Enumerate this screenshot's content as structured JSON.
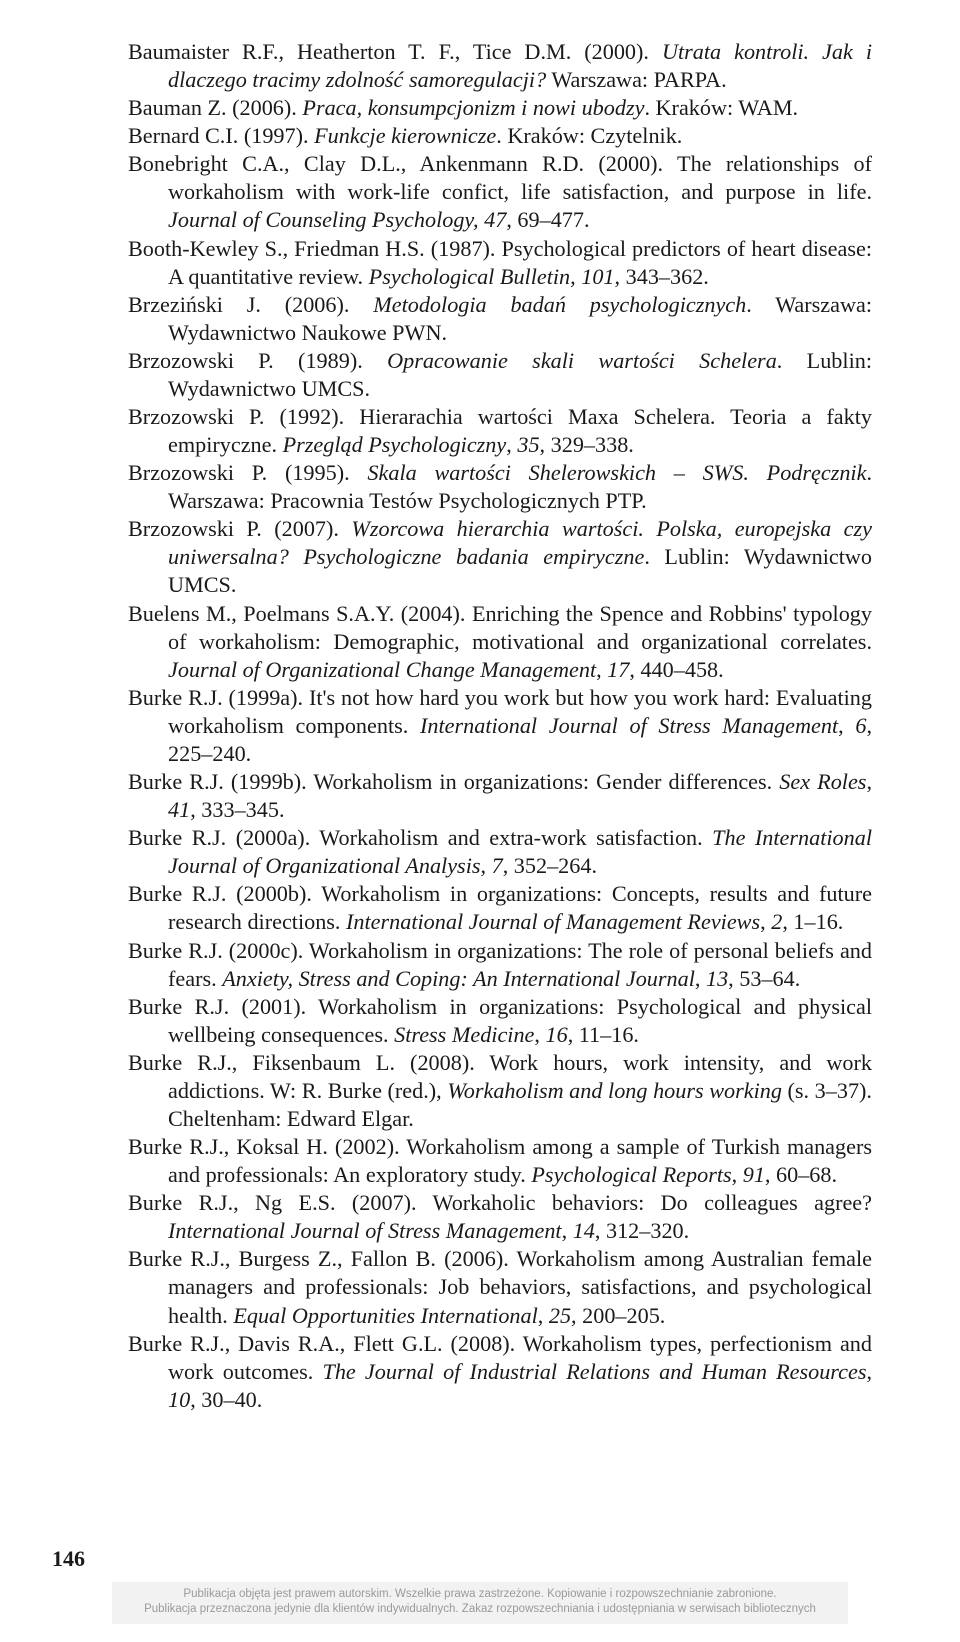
{
  "page_number": "146",
  "copyright_lines": [
    "Publikacja objęta jest prawem autorskim. Wszelkie prawa zastrzeżone. Kopiowanie i rozpowszechnianie zabronione.",
    "Publikacja przeznaczona jedynie dla klientów indywidualnych. Zakaz rozpowszechniania i udostępniania w serwisach bibliotecznych"
  ],
  "refs": [
    [
      [
        "t",
        "Baumaister R.F., Heatherton T. F., Tice D.M. (2000). "
      ],
      [
        "i",
        "Utrata kontroli. Jak i dlaczego tracimy zdolność samoregulacji?"
      ],
      [
        "t",
        " Warszawa: PARPA."
      ]
    ],
    [
      [
        "t",
        "Bauman Z. (2006). "
      ],
      [
        "i",
        "Praca, konsumpcjonizm i nowi ubodzy"
      ],
      [
        "t",
        ". Kraków: WAM."
      ]
    ],
    [
      [
        "t",
        "Bernard C.I. (1997). "
      ],
      [
        "i",
        "Funkcje kierownicze"
      ],
      [
        "t",
        ". Kraków: Czytelnik."
      ]
    ],
    [
      [
        "t",
        "Bonebright C.A., Clay D.L., Ankenmann R.D. (2000). The relationships of workaholism with work-life confict, life satisfaction, and purpose in life. "
      ],
      [
        "i",
        "Journal of Counseling Psychology, 47"
      ],
      [
        "t",
        ", 69–477."
      ]
    ],
    [
      [
        "t",
        "Booth-Kewley S., Friedman H.S. (1987). Psychological predictors of heart disease: A quantitative review. "
      ],
      [
        "i",
        "Psychological Bulletin, 101"
      ],
      [
        "t",
        ", 343–362."
      ]
    ],
    [
      [
        "t",
        "Brzeziński J. (2006). "
      ],
      [
        "i",
        "Metodologia badań psychologicznych"
      ],
      [
        "t",
        ". Warszawa: Wydawnictwo Naukowe PWN."
      ]
    ],
    [
      [
        "t",
        "Brzozowski P. (1989). "
      ],
      [
        "i",
        "Opracowanie skali wartości Schelera"
      ],
      [
        "t",
        ". Lublin: Wydawnictwo UMCS."
      ]
    ],
    [
      [
        "t",
        "Brzozowski P. (1992). Hierarachia wartości Maxa Schelera. Teoria a fakty empiryczne. "
      ],
      [
        "i",
        "Przegląd Psychologiczny"
      ],
      [
        "t",
        ", "
      ],
      [
        "i",
        "35"
      ],
      [
        "t",
        ", 329–338."
      ]
    ],
    [
      [
        "t",
        "Brzozowski P. (1995). "
      ],
      [
        "i",
        "Skala wartości Shelerowskich – SWS. Podręcznik"
      ],
      [
        "t",
        ". Warszawa: Pracownia Testów Psychologicznych PTP."
      ]
    ],
    [
      [
        "t",
        "Brzozowski P. (2007). "
      ],
      [
        "i",
        "Wzorcowa hierarchia wartości. Polska, europejska czy uniwersalna? Psychologiczne badania empiryczne"
      ],
      [
        "t",
        ". Lublin: Wydawnictwo UMCS."
      ]
    ],
    [
      [
        "t",
        "Buelens M., Poelmans S.A.Y. (2004). Enriching the Spence and Robbins' typology of workaholism: Demographic, motivational and organizational correlates. "
      ],
      [
        "i",
        "Journal of Organizational Change Management"
      ],
      [
        "t",
        ", "
      ],
      [
        "i",
        "17"
      ],
      [
        "t",
        ", 440–458."
      ]
    ],
    [
      [
        "t",
        "Burke R.J. (1999a). It's not how hard you work but how you work hard: Evaluating workaholism components. "
      ],
      [
        "i",
        "International Journal of Stress Management"
      ],
      [
        "t",
        ", "
      ],
      [
        "i",
        "6"
      ],
      [
        "t",
        ", 225–240."
      ]
    ],
    [
      [
        "t",
        "Burke R.J. (1999b). Workaholism in organizations: Gender differences. "
      ],
      [
        "i",
        "Sex Roles"
      ],
      [
        "t",
        ", "
      ],
      [
        "i",
        "41"
      ],
      [
        "t",
        ", 333–345."
      ]
    ],
    [
      [
        "t",
        "Burke R.J. (2000a). Workaholism and extra-work satisfaction. "
      ],
      [
        "i",
        "The International Journal of Organizational Analysis"
      ],
      [
        "t",
        ", "
      ],
      [
        "i",
        "7"
      ],
      [
        "t",
        ", 352–264."
      ]
    ],
    [
      [
        "t",
        "Burke R.J. (2000b). Workaholism in organizations: Concepts, results and future research directions. "
      ],
      [
        "i",
        "International Journal of Management Reviews"
      ],
      [
        "t",
        ", "
      ],
      [
        "i",
        "2"
      ],
      [
        "t",
        ", 1–16."
      ]
    ],
    [
      [
        "t",
        "Burke R.J. (2000c). Workaholism in organizations: The role of personal beliefs and fears. "
      ],
      [
        "i",
        "Anxiety, Stress and Coping: An International Journal"
      ],
      [
        "t",
        ", "
      ],
      [
        "i",
        "13"
      ],
      [
        "t",
        ", 53–64."
      ]
    ],
    [
      [
        "t",
        "Burke R.J. (2001). Workaholism in organizations: Psychological and physical wellbeing consequences. "
      ],
      [
        "i",
        "Stress Medicine"
      ],
      [
        "t",
        ", "
      ],
      [
        "i",
        "16"
      ],
      [
        "t",
        ", 11–16."
      ]
    ],
    [
      [
        "t",
        "Burke R.J., Fiksenbaum L. (2008). Work hours, work intensity, and work addictions. W: R. Burke (red.), "
      ],
      [
        "i",
        "Workaholism and long hours working"
      ],
      [
        "t",
        " (s. 3–37). Cheltenham: Edward Elgar."
      ]
    ],
    [
      [
        "t",
        "Burke R.J., Koksal H. (2002). Workaholism among a sample of Turkish managers and professionals: An exploratory study. "
      ],
      [
        "i",
        "Psychological Reports"
      ],
      [
        "t",
        ", "
      ],
      [
        "i",
        "91"
      ],
      [
        "t",
        ", 60–68."
      ]
    ],
    [
      [
        "t",
        "Burke R.J., Ng E.S. (2007). Workaholic behaviors: Do colleagues agree? "
      ],
      [
        "i",
        "International Journal of Stress Management"
      ],
      [
        "t",
        ", "
      ],
      [
        "i",
        "14"
      ],
      [
        "t",
        ", 312–320."
      ]
    ],
    [
      [
        "t",
        "Burke R.J., Burgess Z., Fallon B. (2006). Workaholism among Australian female managers and professionals: Job behaviors, satisfactions, and psychological health. "
      ],
      [
        "i",
        "Equal Opportunities International"
      ],
      [
        "t",
        ", "
      ],
      [
        "i",
        "25"
      ],
      [
        "t",
        ", 200–205."
      ]
    ],
    [
      [
        "t",
        "Burke R.J., Davis R.A., Flett G.L. (2008). Workaholism types, perfectionism and work outcomes. "
      ],
      [
        "i",
        "The Journal of Industrial Relations and Human Resources"
      ],
      [
        "t",
        ", "
      ],
      [
        "i",
        "10"
      ],
      [
        "t",
        ", 30–40."
      ]
    ]
  ]
}
